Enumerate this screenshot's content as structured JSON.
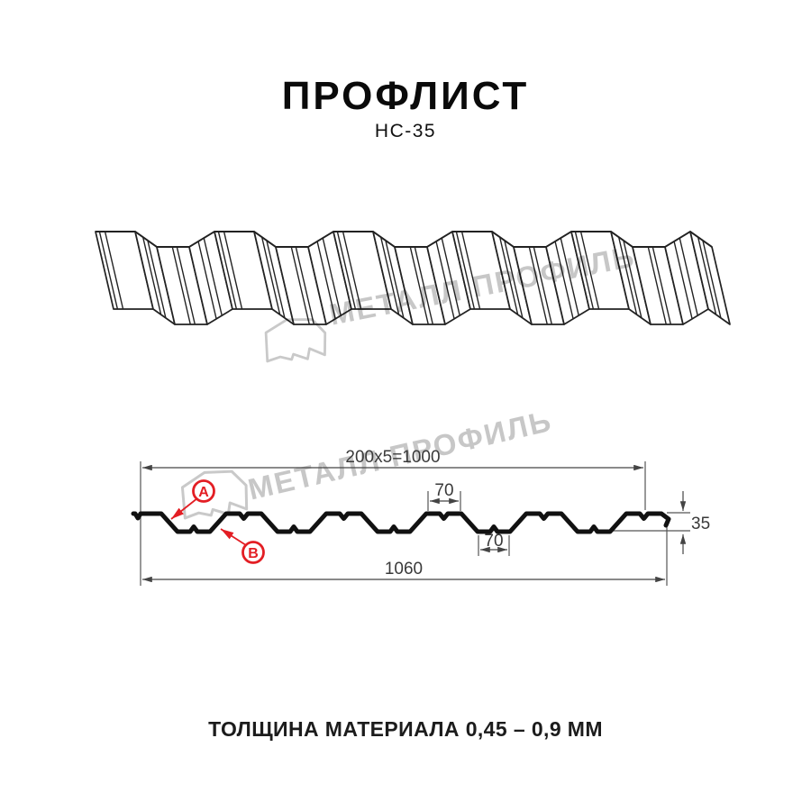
{
  "header": {
    "title": "ПРОФЛИСТ",
    "subtitle": "НС-35"
  },
  "watermark": {
    "brand_text": "МЕТАЛЛ ПРОФИЛЬ"
  },
  "cross_section": {
    "dims": {
      "top_span": "200x5=1000",
      "crest_width": "70",
      "trough_width": "70",
      "height": "35",
      "total_width": "1060"
    },
    "labels": {
      "side_a": "A",
      "side_b": "B"
    }
  },
  "footer": {
    "thickness_note": "ТОЛЩИНА МАТЕРИАЛА 0,45 – 0,9 ММ"
  },
  "colors": {
    "accent_red": "#e31e24",
    "drawing_line": "#1a1a1a",
    "dim_line": "#444444",
    "watermark_gray": "#c7c7c7"
  }
}
